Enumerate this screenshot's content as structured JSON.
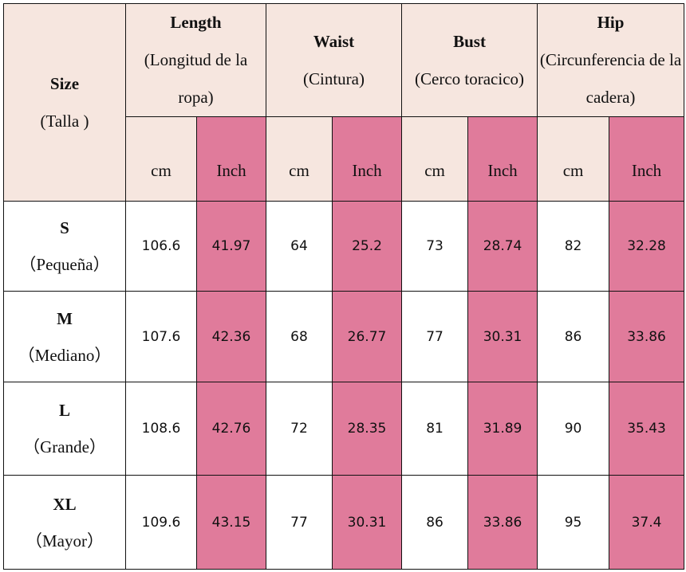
{
  "header": {
    "size_label": "Size",
    "size_sub": "(Talla )",
    "columns": [
      {
        "label": "Length",
        "sub": "(Longitud de la ropa)"
      },
      {
        "label": "Waist",
        "sub": "(Cintura)"
      },
      {
        "label": "Bust",
        "sub": "(Cerco toracico)"
      },
      {
        "label": "Hip",
        "sub": "(Circunferencia de la cadera)"
      }
    ],
    "unit_cm": "cm",
    "unit_inch": "Inch"
  },
  "colors": {
    "header_bg": "#f6e6df",
    "inch_bg": "#e07b9b"
  },
  "rows": [
    {
      "size": "S",
      "sub": "（Pequeña）",
      "values": [
        "106.6",
        "41.97",
        "64",
        "25.2",
        "73",
        "28.74",
        "82",
        "32.28"
      ]
    },
    {
      "size": "M",
      "sub": "（Mediano）",
      "values": [
        "107.6",
        "42.36",
        "68",
        "26.77",
        "77",
        "30.31",
        "86",
        "33.86"
      ]
    },
    {
      "size": "L",
      "sub": "（Grande）",
      "values": [
        "108.6",
        "42.76",
        "72",
        "28.35",
        "81",
        "31.89",
        "90",
        "35.43"
      ]
    },
    {
      "size": "XL",
      "sub": "（Mayor）",
      "values": [
        "109.6",
        "43.15",
        "77",
        "30.31",
        "86",
        "33.86",
        "95",
        "37.4"
      ]
    }
  ]
}
